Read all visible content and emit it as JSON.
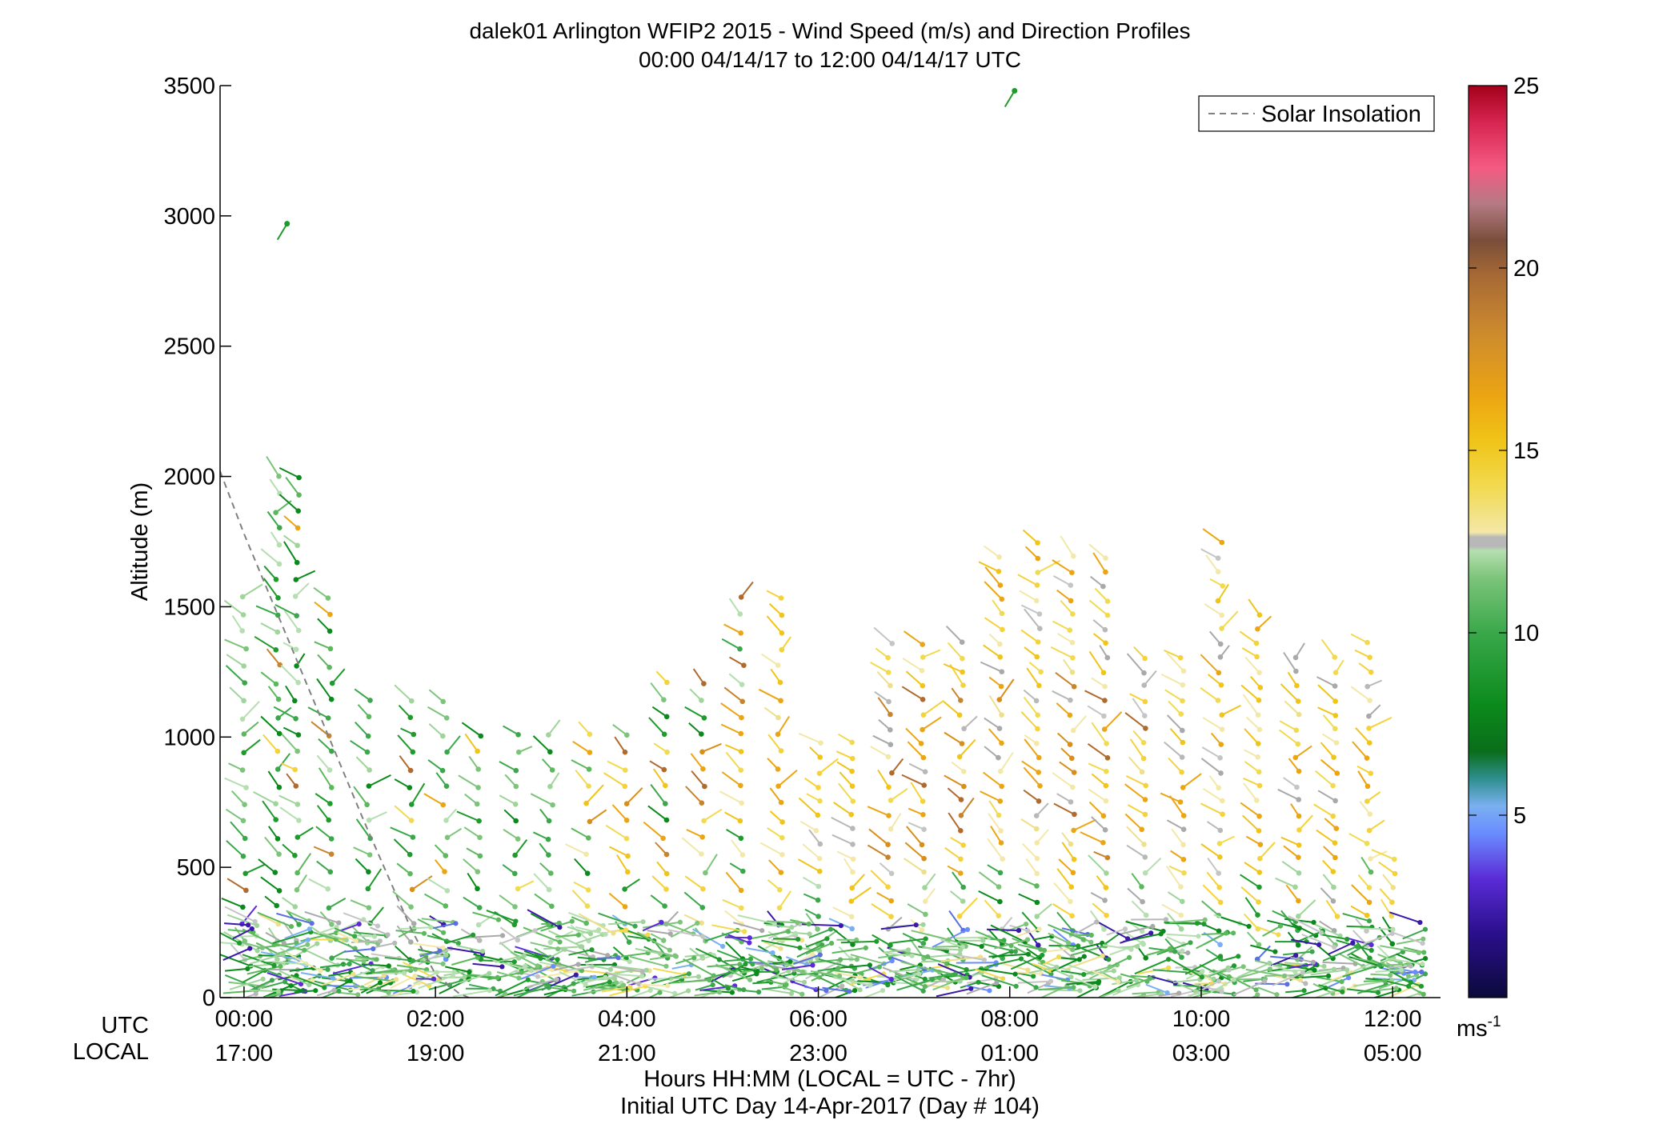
{
  "chart_data": {
    "type": "scatter",
    "title": "dalek01 Arlington WFIP2 2015 - Wind Speed (m/s) and Direction Profiles",
    "subtitle": "00:00 04/14/17 to 12:00 04/14/17  UTC",
    "ylabel": "Altitude (m)",
    "xlabel": "Hours HH:MM  (LOCAL = UTC - 7hr)",
    "xlabel2": "Initial UTC Day 14-Apr-2017 (Day # 104)",
    "xlim": [
      -0.25,
      12.5
    ],
    "ylim": [
      0,
      3500
    ],
    "x_ticks": [
      0,
      2,
      4,
      6,
      8,
      10,
      12
    ],
    "y_ticks": [
      0,
      500,
      1000,
      1500,
      2000,
      2500,
      3000,
      3500
    ],
    "y_tick_labels": [
      "0",
      "500",
      "1000",
      "1500",
      "2000",
      "2500",
      "3000",
      "3500"
    ],
    "x_row_labels": {
      "utc": "UTC",
      "local": "LOCAL"
    },
    "utc_tick_labels": [
      "00:00",
      "02:00",
      "04:00",
      "06:00",
      "08:00",
      "10:00",
      "12:00"
    ],
    "local_tick_labels": [
      "17:00",
      "19:00",
      "21:00",
      "23:00",
      "01:00",
      "03:00",
      "05:00"
    ],
    "legend": {
      "entries": [
        "Solar Insolation"
      ],
      "position": "top-right"
    },
    "colorbar": {
      "range": [
        0,
        25
      ],
      "ticks": [
        5,
        10,
        15,
        20,
        25
      ],
      "tick_labels": [
        "5",
        "10",
        "15",
        "20",
        "25"
      ],
      "unit_base": "ms",
      "unit_sup": "-1"
    },
    "solar_insolation": {
      "x": [
        -0.25,
        0.0,
        0.25,
        0.5,
        0.75,
        1.0,
        1.25,
        1.5,
        1.75,
        2.0,
        2.25,
        2.35
      ],
      "y": [
        2020,
        1780,
        1560,
        1340,
        1120,
        900,
        680,
        470,
        260,
        90,
        15,
        0
      ]
    },
    "series": [
      {
        "name": "Solar Insolation",
        "style": "dashed",
        "color": "#808080"
      }
    ],
    "profile_times_utc": [
      0.0,
      0.35,
      0.55,
      0.9,
      1.3,
      1.75,
      2.1,
      2.45,
      2.85,
      3.2,
      3.6,
      4.0,
      4.4,
      4.8,
      5.2,
      5.6,
      6.0,
      6.35,
      6.75,
      7.1,
      7.5,
      7.9,
      8.3,
      8.65,
      9.0,
      9.4,
      9.8,
      10.2,
      10.6,
      11.0,
      11.4,
      11.75,
      12.0
    ]
  }
}
